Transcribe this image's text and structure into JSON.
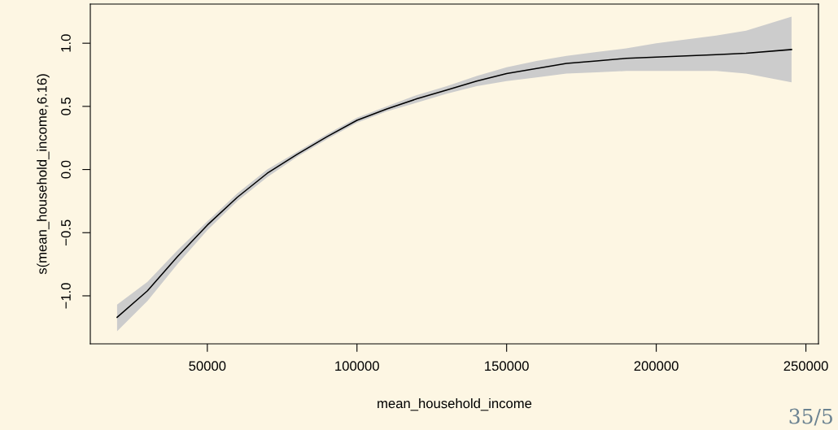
{
  "chart_data": {
    "type": "line",
    "xlabel": "mean_household_income",
    "ylabel": "s(mean_household_income,6.16)",
    "x": [
      19850,
      30000,
      40000,
      50000,
      60000,
      70000,
      80000,
      90000,
      100000,
      110000,
      120000,
      130000,
      140000,
      150000,
      160000,
      170000,
      180000,
      190000,
      200000,
      210000,
      220000,
      230000,
      245200
    ],
    "series": [
      {
        "color": "#000000",
        "values": [
          -1.17,
          -0.96,
          -0.69,
          -0.44,
          -0.22,
          -0.03,
          0.12,
          0.26,
          0.39,
          0.48,
          0.56,
          0.63,
          0.7,
          0.76,
          0.8,
          0.84,
          0.86,
          0.88,
          0.89,
          0.9,
          0.91,
          0.92,
          0.95
        ],
        "lower": [
          -1.28,
          -1.04,
          -0.75,
          -0.48,
          -0.25,
          -0.06,
          0.1,
          0.24,
          0.37,
          0.46,
          0.53,
          0.6,
          0.66,
          0.7,
          0.73,
          0.76,
          0.77,
          0.78,
          0.78,
          0.78,
          0.78,
          0.76,
          0.69
        ],
        "upper": [
          -1.07,
          -0.89,
          -0.64,
          -0.41,
          -0.19,
          0.0,
          0.14,
          0.28,
          0.41,
          0.5,
          0.59,
          0.66,
          0.74,
          0.81,
          0.86,
          0.9,
          0.93,
          0.96,
          1.0,
          1.03,
          1.06,
          1.1,
          1.21
        ]
      }
    ],
    "xlim": [
      10900,
      254200
    ],
    "ylim": [
      -1.38,
      1.31
    ],
    "xticks": [
      50000,
      100000,
      150000,
      200000,
      250000
    ],
    "yticks": [
      {
        "value": -1.0,
        "label": "−1.0"
      },
      {
        "value": -0.5,
        "label": "−0.5"
      },
      {
        "value": 0.0,
        "label": "0.0"
      },
      {
        "value": 0.5,
        "label": "0.5"
      },
      {
        "value": 1.0,
        "label": "1.0"
      }
    ],
    "grid": false,
    "legend": false,
    "line_style": "solid",
    "marker": "none",
    "annotations": [
      "35/5"
    ]
  }
}
